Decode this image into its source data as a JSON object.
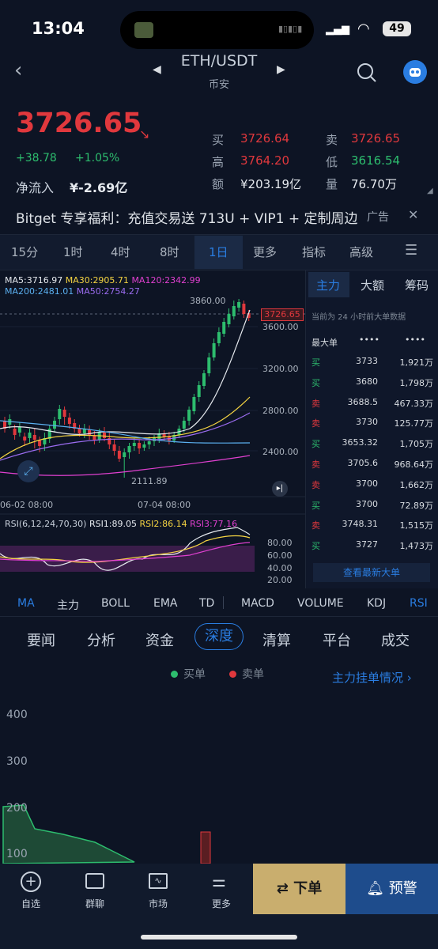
{
  "status": {
    "time": "13:04",
    "battery": "49"
  },
  "header": {
    "pair": "ETH/USDT",
    "exchange": "币安"
  },
  "price": {
    "last": "3726.65",
    "change": "+38.78",
    "change_pct": "+1.05%",
    "net_inflow_label": "净流入",
    "net_inflow_value": "¥-2.69亿"
  },
  "stats": {
    "buy_label": "买",
    "buy": "3726.64",
    "sell_label": "卖",
    "sell": "3726.65",
    "high_label": "高",
    "high": "3764.20",
    "low_label": "低",
    "low": "3616.54",
    "amount_label": "额",
    "amount": "¥203.19亿",
    "volume_label": "量",
    "volume": "76.70万"
  },
  "banner": {
    "text": "Bitget 专享福利：充值交易送 713U + VIP1 + 定制周边",
    "ad": "广告"
  },
  "timeframes": [
    "15分",
    "1时",
    "4时",
    "8时",
    "1日",
    "更多",
    "指标",
    "高级"
  ],
  "active_timeframe": "1日",
  "chart_data": {
    "type": "candlestick",
    "ma_legend": {
      "ma5": "MA5:3716.97",
      "ma30": "MA30:2905.71",
      "ma120": "MA120:2342.99",
      "ma200": "MA200:2481.01",
      "ma50": "MA50:2754.27"
    },
    "price_marker": "3726.65",
    "high_marker": "3860.00",
    "low_marker": "2111.89",
    "y_ticks": [
      "3600.00",
      "3200.00",
      "2800.00",
      "2400.00"
    ],
    "x_ticks": [
      "06-02 08:00",
      "07-04 08:00"
    ],
    "rsi_legend": {
      "label": "RSI(6,12,24,70,30)",
      "rsi1": "RSI1:89.05",
      "rsi2": "RSI2:86.14",
      "rsi3": "RSI3:77.16"
    },
    "rsi_ticks": [
      "80.00",
      "60.00",
      "40.00",
      "20.00"
    ]
  },
  "panel": {
    "tabs": [
      "主力",
      "大额",
      "筹码"
    ],
    "note": "当前为 24 小时前大单数据",
    "header": "最大单",
    "rows": [
      {
        "side": "买",
        "price": "3733",
        "amount": "1,921万"
      },
      {
        "side": "买",
        "price": "3680",
        "amount": "1,798万"
      },
      {
        "side": "卖",
        "price": "3688.5",
        "amount": "467.33万"
      },
      {
        "side": "卖",
        "price": "3730",
        "amount": "125.77万"
      },
      {
        "side": "买",
        "price": "3653.32",
        "amount": "1,705万"
      },
      {
        "side": "卖",
        "price": "3705.6",
        "amount": "968.64万"
      },
      {
        "side": "卖",
        "price": "3700",
        "amount": "1,662万"
      },
      {
        "side": "买",
        "price": "3700",
        "amount": "72.89万"
      },
      {
        "side": "卖",
        "price": "3748.31",
        "amount": "1,515万"
      },
      {
        "side": "买",
        "price": "3727",
        "amount": "1,473万"
      }
    ],
    "more": "查看最新大单"
  },
  "indicators": [
    "MA",
    "主力",
    "BOLL",
    "EMA",
    "TD",
    "MACD",
    "VOLUME",
    "KDJ",
    "RSI"
  ],
  "news_tabs": [
    "要闻",
    "分析",
    "资金",
    "深度",
    "清算",
    "平台",
    "成交"
  ],
  "depth": {
    "buy_label": "买单",
    "sell_label": "卖单",
    "link": "主力挂单情况 ›",
    "y_ticks": [
      "400",
      "300",
      "200",
      "100"
    ]
  },
  "nav": {
    "items": [
      "自选",
      "群聊",
      "市场",
      "更多"
    ],
    "order": "下单",
    "alert": "预警"
  },
  "colors": {
    "red": "#e0383d",
    "green": "#2dbd6e",
    "accent": "#2a7de1",
    "gold": "#c9ae6e"
  }
}
